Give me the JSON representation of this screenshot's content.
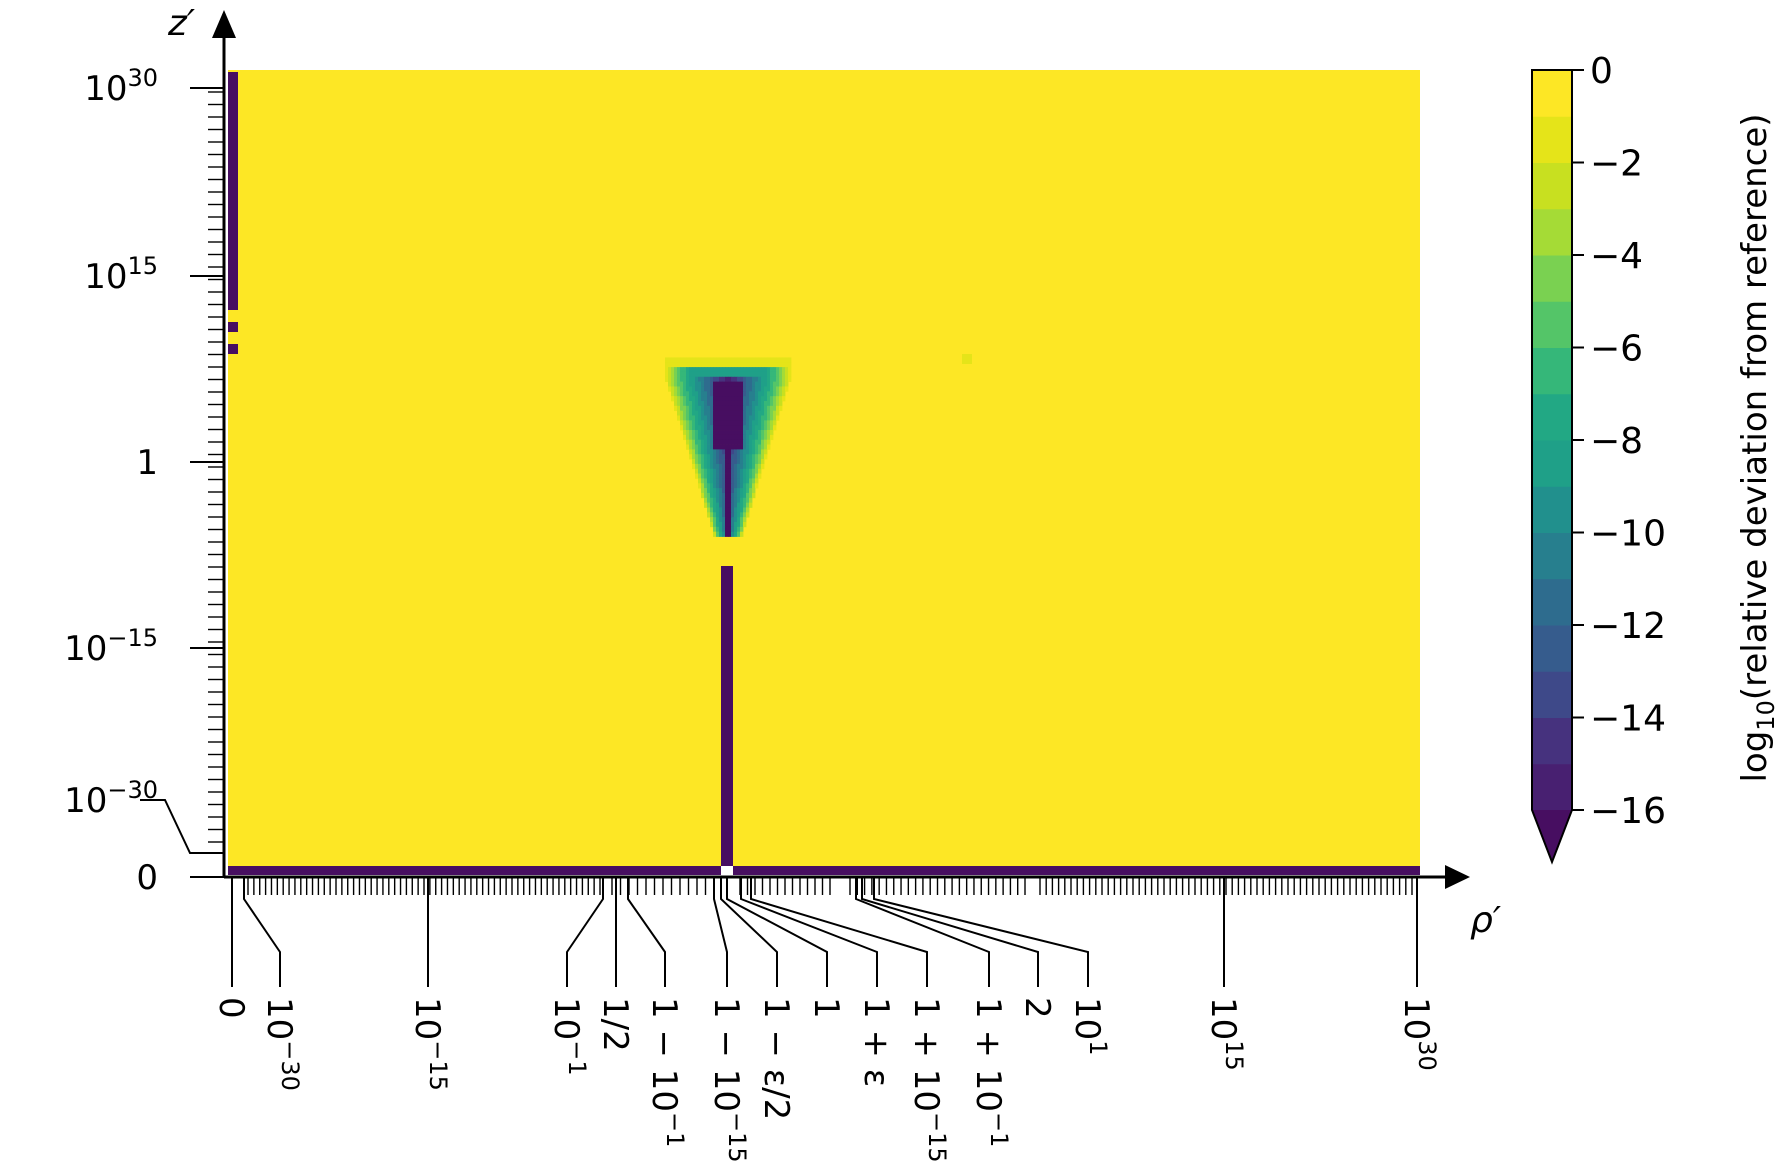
{
  "chart_data": {
    "type": "heatmap",
    "x_axis": {
      "label": "ρ′",
      "scale": "piecewise: linear at 0, log-mirrored around 1, log elsewhere",
      "labeled_ticks": [
        {
          "value": "0"
        },
        {
          "value": "10^-30",
          "base": "10",
          "exp": "−30"
        },
        {
          "value": "10^-15",
          "base": "10",
          "exp": "−15"
        },
        {
          "value": "10^-1",
          "base": "10",
          "exp": "−1"
        },
        {
          "value": "1/2"
        },
        {
          "value": "1 − 10^-1",
          "base": "1 − 10",
          "exp": "−1"
        },
        {
          "value": "1 − 10^-15",
          "base": "1 − 10",
          "exp": "−15"
        },
        {
          "value": "1 − ε/2"
        },
        {
          "value": "1"
        },
        {
          "value": "1 + ε"
        },
        {
          "value": "1 + 10^-15",
          "base": "1 + 10",
          "exp": "−15"
        },
        {
          "value": "1 + 10^-1",
          "base": "1 + 10",
          "exp": "−1"
        },
        {
          "value": "2"
        },
        {
          "value": "10^1",
          "base": "10",
          "exp": "1"
        },
        {
          "value": "10^15",
          "base": "10",
          "exp": "15"
        },
        {
          "value": "10^30",
          "base": "10",
          "exp": "30"
        }
      ]
    },
    "y_axis": {
      "label": "z′",
      "scale": "log with 0 and 10^-30 break",
      "labeled_ticks": [
        {
          "value": "0"
        },
        {
          "value": "10^-30",
          "base": "10",
          "exp": "−30"
        },
        {
          "value": "10^-15",
          "base": "10",
          "exp": "−15"
        },
        {
          "value": "1"
        },
        {
          "value": "10^15",
          "base": "10",
          "exp": "15"
        },
        {
          "value": "10^30",
          "base": "10",
          "exp": "30"
        }
      ]
    },
    "colorbar": {
      "label_prefix": "log",
      "label_sub": "10",
      "label_rest": "(relative deviation from reference)",
      "range": [
        -16,
        0
      ],
      "extend": "min",
      "ticks": [
        "0",
        "−2",
        "−4",
        "−6",
        "−8",
        "−10",
        "−12",
        "−14",
        "−16"
      ],
      "levels": [
        -16,
        -15,
        -14,
        -13,
        -12,
        -11,
        -10,
        -9,
        -8,
        -7,
        -6,
        -5,
        -4,
        -3,
        -2,
        -1,
        0
      ],
      "colors": [
        "#470E61",
        "#482071",
        "#46327E",
        "#3E4989",
        "#365C8D",
        "#2E6C8E",
        "#277F8E",
        "#21908D",
        "#1FA088",
        "#22A884",
        "#35B779",
        "#54C568",
        "#7AD151",
        "#A5DB36",
        "#C8E020",
        "#E5E419",
        "#FDE725"
      ]
    },
    "regions": [
      {
        "description": "background",
        "value": 0
      },
      {
        "description": "z′ = 0 row",
        "value": -16
      },
      {
        "description": "ρ′ = 0 column for z′ up to ~10^10",
        "value": -16
      },
      {
        "description": "ρ′ = 1 column for small z′",
        "value": -16
      },
      {
        "description": "inverted triangle around ρ′ = 1, z′ ≈ 1",
        "value_range": [
          -16,
          -1
        ]
      }
    ]
  }
}
